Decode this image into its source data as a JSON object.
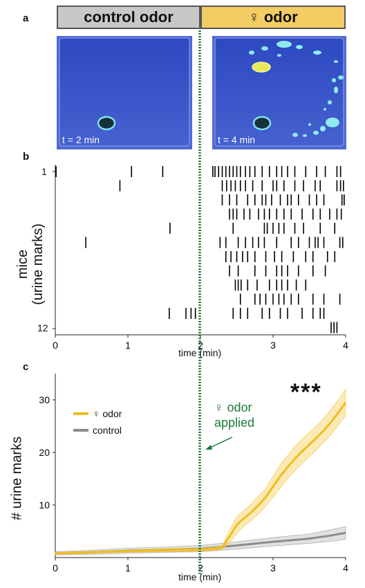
{
  "panels": {
    "a": {
      "letter": "a",
      "header_left": "control odor",
      "header_right": "♀ odor",
      "photo_left_label": "t = 2 min",
      "photo_right_label": "t = 4 min",
      "colors": {
        "control_header": "#c8c8c8",
        "odor_header": "#f2cd63",
        "plate": "#3f59c9",
        "mark": "#7fe3ec",
        "spot": "#e7e85a"
      }
    },
    "b": {
      "letter": "b",
      "ylabel_line1": "mice",
      "ylabel_line2": "(urine marks)",
      "ytick_top": "1",
      "ytick_bottom": "12",
      "xlabel": "time (min)",
      "xticks": [
        "0",
        "1",
        "2",
        "3",
        "4"
      ]
    },
    "c": {
      "letter": "c",
      "ylabel": "# urine marks",
      "xlabel": "time (min)",
      "xticks": [
        "0",
        "1",
        "2",
        "3",
        "4"
      ],
      "yticks": [
        "10",
        "20",
        "30"
      ],
      "legend_odor": "♀ odor",
      "legend_control": "control",
      "annotation_line1": "♀ odor",
      "annotation_line2": "applied",
      "significance": "***"
    }
  },
  "chart_data": [
    {
      "type": "raster",
      "xlim": [
        0,
        4
      ],
      "odor_application_time": 2,
      "rows": [
        [
          0.01,
          1.05,
          1.48,
          2.17,
          2.2,
          2.25,
          2.3,
          2.35,
          2.4,
          2.45,
          2.5,
          2.55,
          2.62,
          2.68,
          2.75,
          2.85,
          2.95,
          3.05,
          3.12,
          3.2,
          3.3,
          3.45,
          3.6,
          3.72,
          3.88,
          3.93
        ],
        [
          0.89,
          2.3,
          2.36,
          2.42,
          2.48,
          2.55,
          2.62,
          2.72,
          2.85,
          3.0,
          3.05,
          3.15,
          3.3,
          3.42,
          3.58,
          3.65,
          3.88,
          3.93,
          3.97
        ],
        [
          2.3,
          2.4,
          2.5,
          2.65,
          2.75,
          2.85,
          2.9,
          2.98,
          3.1,
          3.2,
          3.25,
          3.35,
          3.5,
          3.6,
          3.7,
          3.95,
          3.98
        ],
        [
          2.4,
          2.45,
          2.5,
          2.6,
          2.68,
          2.8,
          2.88,
          2.95,
          3.05,
          3.15,
          3.25,
          3.4,
          3.55,
          3.65,
          3.78,
          3.88,
          3.94
        ],
        [
          1.58,
          2.45,
          2.88,
          2.92,
          3.0,
          3.08,
          3.15,
          3.3,
          3.42,
          3.65,
          3.85
        ],
        [
          0.42,
          2.27,
          2.35,
          2.52,
          2.62,
          2.72,
          2.8,
          2.88,
          3.05,
          3.25,
          3.35,
          3.5,
          3.58,
          3.62,
          3.7,
          3.92,
          3.96
        ],
        [
          2.35,
          2.42,
          2.5,
          2.58,
          2.65,
          2.75,
          2.9,
          3.02,
          3.12,
          3.28,
          3.45,
          3.55,
          3.75,
          3.85
        ],
        [
          2.4,
          2.52,
          2.75,
          2.9,
          3.05,
          3.12,
          3.2,
          3.35,
          3.55,
          3.72
        ],
        [
          2.48,
          2.52,
          2.56,
          2.65,
          2.78,
          2.95,
          3.05,
          3.12,
          3.2,
          3.32,
          3.45
        ],
        [
          2.55,
          2.75,
          2.82,
          2.9,
          3.0,
          3.08,
          3.15,
          3.25,
          3.35,
          3.55,
          3.7,
          3.92
        ],
        [
          1.57,
          1.8,
          1.87,
          1.93,
          2.45,
          2.55,
          2.65,
          2.85,
          2.95,
          3.1,
          3.2,
          3.4,
          3.55,
          3.65,
          3.7
        ],
        [
          3.8,
          3.84,
          3.88
        ]
      ]
    },
    {
      "type": "line",
      "xlim": [
        0,
        4
      ],
      "ylim": [
        0,
        35
      ],
      "series": [
        {
          "name": "♀ odor",
          "color": "#f0bc21",
          "x": [
            0,
            0.5,
            1,
            1.5,
            2,
            2.2,
            2.3,
            2.4,
            2.5,
            2.6,
            2.7,
            2.8,
            2.9,
            3.0,
            3.1,
            3.2,
            3.3,
            3.4,
            3.5,
            3.6,
            3.7,
            3.8,
            3.9,
            4.0
          ],
          "y": [
            0.8,
            1.0,
            1.2,
            1.4,
            1.5,
            1.7,
            1.9,
            4.0,
            6.2,
            7.5,
            8.6,
            10.0,
            11.5,
            13.5,
            15.5,
            17.2,
            18.8,
            20.2,
            21.5,
            22.8,
            24.2,
            25.8,
            27.6,
            29.5
          ],
          "lower": [
            0.6,
            0.8,
            1.0,
            1.1,
            1.2,
            1.4,
            1.6,
            2.8,
            4.6,
            6.0,
            7.0,
            8.3,
            9.8,
            11.5,
            13.3,
            15.0,
            16.5,
            17.9,
            19.2,
            20.5,
            21.9,
            23.4,
            25.2,
            27.0
          ],
          "upper": [
            1.0,
            1.2,
            1.4,
            1.7,
            1.8,
            2.0,
            2.3,
            5.2,
            7.8,
            9.0,
            10.2,
            11.7,
            13.2,
            15.5,
            17.7,
            19.4,
            21.1,
            22.5,
            23.8,
            25.1,
            26.5,
            28.2,
            30.0,
            32.0
          ]
        },
        {
          "name": "control",
          "color": "#8c8c8c",
          "x": [
            0,
            0.5,
            1,
            1.5,
            2,
            2.5,
            3,
            3.5,
            3.8,
            4.0
          ],
          "y": [
            0.8,
            1.0,
            1.3,
            1.5,
            1.7,
            2.3,
            3.0,
            3.6,
            4.2,
            4.7
          ],
          "lower": [
            0.5,
            0.6,
            0.8,
            1.0,
            1.1,
            1.6,
            2.2,
            2.7,
            3.1,
            3.5
          ],
          "upper": [
            1.1,
            1.4,
            1.8,
            2.0,
            2.3,
            3.0,
            3.8,
            4.5,
            5.3,
            5.9
          ]
        }
      ]
    }
  ]
}
